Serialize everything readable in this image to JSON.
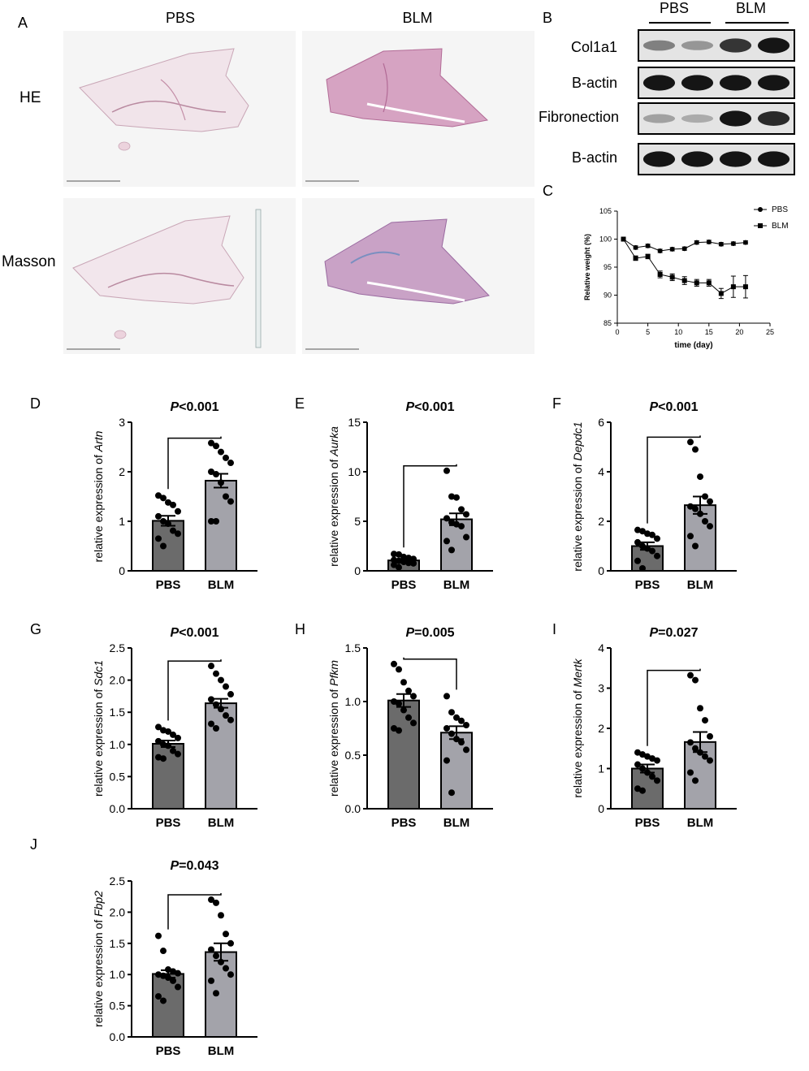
{
  "panel_labels": [
    "A",
    "B",
    "C",
    "D",
    "E",
    "F",
    "G",
    "H",
    "I",
    "J"
  ],
  "histology": {
    "columns": [
      "PBS",
      "BLM"
    ],
    "rows": [
      "HE",
      "Masson"
    ]
  },
  "western": {
    "groups": [
      "PBS",
      "BLM"
    ],
    "rows": [
      {
        "label": "Col1a1",
        "intensity": [
          0.45,
          0.35,
          0.8,
          0.95
        ]
      },
      {
        "label": "B-actin",
        "intensity": [
          0.95,
          0.95,
          0.95,
          0.95
        ]
      },
      {
        "label": "Fibronection",
        "intensity": [
          0.3,
          0.25,
          0.95,
          0.85
        ]
      },
      {
        "label": "B-actin",
        "intensity": [
          0.95,
          0.95,
          0.95,
          0.95
        ]
      }
    ]
  },
  "chart_data": [
    {
      "id": "C",
      "type": "line",
      "xlabel": "time (day)",
      "ylabel": "Relative weight (%)",
      "xlim": [
        0,
        25
      ],
      "ylim": [
        85,
        105
      ],
      "xticks": [
        0,
        5,
        10,
        15,
        20,
        25
      ],
      "yticks": [
        85,
        90,
        95,
        100,
        105
      ],
      "legend": "top-right",
      "series": [
        {
          "name": "PBS",
          "marker": "circle",
          "x": [
            1,
            3,
            5,
            7,
            9,
            11,
            13,
            15,
            17,
            19,
            21
          ],
          "y": [
            100,
            98.5,
            98.8,
            97.9,
            98.2,
            98.3,
            99.4,
            99.5,
            99.1,
            99.2,
            99.4
          ],
          "err": [
            0,
            0.3,
            0.3,
            0.3,
            0.3,
            0.3,
            0.3,
            0.3,
            0.3,
            0.3,
            0.3
          ]
        },
        {
          "name": "BLM",
          "marker": "square",
          "x": [
            1,
            3,
            5,
            7,
            9,
            11,
            13,
            15,
            17,
            19,
            21
          ],
          "y": [
            100,
            96.6,
            96.9,
            93.7,
            93.2,
            92.6,
            92.2,
            92.2,
            90.3,
            91.5,
            91.5
          ],
          "err": [
            0,
            0.4,
            0.4,
            0.6,
            0.6,
            0.7,
            0.6,
            0.6,
            0.9,
            1.9,
            2.0
          ]
        }
      ]
    },
    {
      "id": "D",
      "type": "bar",
      "gene": "Artn",
      "title": "P<0.001",
      "ylabel_prefix": "relative expression of ",
      "categories": [
        "PBS",
        "BLM"
      ],
      "values": [
        1.01,
        1.82
      ],
      "sem": [
        0.1,
        0.14
      ],
      "ylim": [
        0,
        3
      ],
      "yticks": [
        0,
        1,
        2,
        3
      ],
      "ytick_labels": [
        "0",
        "1",
        "2",
        "3"
      ],
      "points": [
        [
          1.52,
          1.47,
          1.38,
          1.33,
          1.2,
          1.1,
          1.0,
          0.95,
          0.81,
          0.75,
          0.65,
          0.5
        ],
        [
          2.58,
          2.52,
          2.4,
          2.28,
          2.18,
          2.0,
          1.95,
          1.78,
          1.5,
          1.4,
          1.0,
          1.0
        ]
      ]
    },
    {
      "id": "E",
      "type": "bar",
      "gene": "Aurka",
      "title": "P<0.001",
      "ylabel_prefix": "relative expression of ",
      "categories": [
        "PBS",
        "BLM"
      ],
      "values": [
        1.05,
        5.2
      ],
      "sem": [
        0.15,
        0.6
      ],
      "ylim": [
        0,
        15
      ],
      "yticks": [
        0,
        5,
        10,
        15
      ],
      "ytick_labels": [
        "0",
        "5",
        "10",
        "15"
      ],
      "points": [
        [
          1.7,
          1.65,
          1.4,
          1.3,
          1.2,
          1.1,
          1.0,
          0.9,
          0.8,
          0.75,
          0.6,
          0.35
        ],
        [
          10.1,
          7.5,
          7.4,
          6.2,
          5.7,
          5.3,
          4.9,
          4.7,
          4.5,
          3.4,
          3.0,
          2.1
        ]
      ]
    },
    {
      "id": "F",
      "type": "bar",
      "gene": "Depdc1",
      "title": "P<0.001",
      "ylabel_prefix": "relative expression of ",
      "categories": [
        "PBS",
        "BLM"
      ],
      "values": [
        1.0,
        2.65
      ],
      "sem": [
        0.15,
        0.35
      ],
      "ylim": [
        0,
        6
      ],
      "yticks": [
        0,
        2,
        4,
        6
      ],
      "ytick_labels": [
        "0",
        "2",
        "4",
        "6"
      ],
      "points": [
        [
          1.65,
          1.6,
          1.5,
          1.45,
          1.3,
          1.15,
          1.0,
          0.9,
          0.8,
          0.6,
          0.4,
          0.1
        ],
        [
          5.2,
          4.9,
          3.8,
          3.0,
          2.8,
          2.6,
          2.5,
          2.3,
          2.0,
          1.8,
          1.4,
          1.0
        ]
      ]
    },
    {
      "id": "G",
      "type": "bar",
      "gene": "Sdc1",
      "title": "P<0.001",
      "ylabel_prefix": "relative expression of ",
      "categories": [
        "PBS",
        "BLM"
      ],
      "values": [
        1.01,
        1.64
      ],
      "sem": [
        0.05,
        0.07
      ],
      "ylim": [
        0,
        2.5
      ],
      "yticks": [
        0,
        0.5,
        1,
        1.5,
        2,
        2.5
      ],
      "ytick_labels": [
        "0.0",
        "0.5",
        "1.0",
        "1.5",
        "2.0",
        "2.5"
      ],
      "points": [
        [
          1.27,
          1.22,
          1.2,
          1.15,
          1.1,
          1.05,
          1.0,
          0.98,
          0.9,
          0.85,
          0.8,
          0.78
        ],
        [
          2.22,
          2.1,
          2.0,
          1.9,
          1.78,
          1.7,
          1.62,
          1.55,
          1.45,
          1.38,
          1.32,
          1.25
        ]
      ]
    },
    {
      "id": "H",
      "type": "bar",
      "gene": "Pfkm",
      "title": "P=0.005",
      "ylabel_prefix": "relative expression of ",
      "categories": [
        "PBS",
        "BLM"
      ],
      "values": [
        1.01,
        0.71
      ],
      "sem": [
        0.06,
        0.06
      ],
      "ylim": [
        0,
        1.5
      ],
      "yticks": [
        0,
        0.5,
        1,
        1.5
      ],
      "ytick_labels": [
        "0.0",
        "0.5",
        "1.0",
        "1.5"
      ],
      "points": [
        [
          1.35,
          1.3,
          1.18,
          1.1,
          1.05,
          1.0,
          0.98,
          0.92,
          0.85,
          0.8,
          0.75,
          0.73
        ],
        [
          1.05,
          0.9,
          0.85,
          0.82,
          0.78,
          0.75,
          0.7,
          0.65,
          0.62,
          0.55,
          0.45,
          0.15
        ]
      ]
    },
    {
      "id": "I",
      "type": "bar",
      "gene": "Mertk",
      "title": "P=0.027",
      "ylabel_prefix": "relative expression of ",
      "categories": [
        "PBS",
        "BLM"
      ],
      "values": [
        1.0,
        1.66
      ],
      "sem": [
        0.1,
        0.25
      ],
      "ylim": [
        0,
        4
      ],
      "yticks": [
        0,
        1,
        2,
        3,
        4
      ],
      "ytick_labels": [
        "0",
        "1",
        "2",
        "3",
        "4"
      ],
      "points": [
        [
          1.4,
          1.35,
          1.3,
          1.25,
          1.2,
          1.1,
          1.0,
          0.9,
          0.8,
          0.7,
          0.5,
          0.45
        ],
        [
          3.32,
          3.2,
          2.5,
          2.2,
          1.8,
          1.65,
          1.5,
          1.4,
          1.3,
          1.2,
          0.9,
          0.7
        ]
      ]
    },
    {
      "id": "J",
      "type": "bar",
      "gene": "Fbp2",
      "title": "P=0.043",
      "ylabel_prefix": "relative expression of ",
      "categories": [
        "PBS",
        "BLM"
      ],
      "values": [
        1.01,
        1.36
      ],
      "sem": [
        0.06,
        0.14
      ],
      "ylim": [
        0,
        2.5
      ],
      "yticks": [
        0,
        0.5,
        1,
        1.5,
        2,
        2.5
      ],
      "ytick_labels": [
        "0.0",
        "0.5",
        "1.0",
        "1.5",
        "2.0",
        "2.5"
      ],
      "points": [
        [
          1.62,
          1.38,
          1.08,
          1.05,
          1.02,
          1.0,
          0.98,
          0.95,
          0.9,
          0.8,
          0.65,
          0.58
        ],
        [
          2.2,
          2.15,
          1.95,
          1.65,
          1.5,
          1.4,
          1.3,
          1.2,
          1.1,
          1.0,
          0.9,
          0.7
        ]
      ]
    }
  ]
}
